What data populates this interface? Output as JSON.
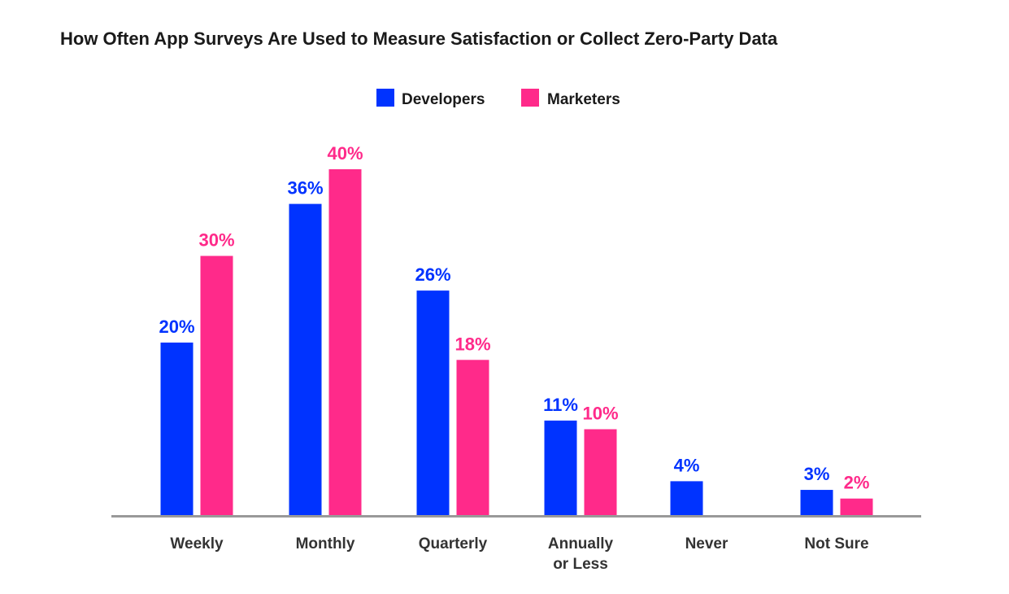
{
  "chart_data": {
    "type": "bar",
    "title": "How Often App Surveys Are Used to Measure Satisfaction or Collect Zero-Party Data",
    "categories": [
      "Weekly",
      "Monthly",
      "Quarterly",
      "Annually or Less",
      "Never",
      "Not Sure"
    ],
    "category_lines": [
      [
        "Weekly"
      ],
      [
        "Monthly"
      ],
      [
        "Quarterly"
      ],
      [
        "Annually",
        "or Less"
      ],
      [
        "Never"
      ],
      [
        "Not Sure"
      ]
    ],
    "series": [
      {
        "name": "Developers",
        "color": "#0033ff",
        "values": [
          20,
          36,
          26,
          11,
          4,
          3
        ],
        "labels": [
          "20%",
          "36%",
          "26%",
          "11%",
          "4%",
          "3%"
        ]
      },
      {
        "name": "Marketers",
        "color": "#ff2a8a",
        "values": [
          30,
          40,
          18,
          10,
          null,
          2
        ],
        "labels": [
          "30%",
          "40%",
          "18%",
          "10%",
          "",
          "2%"
        ]
      }
    ],
    "ylim": [
      0,
      40
    ],
    "grid": false,
    "legend_position": "top-center",
    "xlabel": "",
    "ylabel": ""
  }
}
